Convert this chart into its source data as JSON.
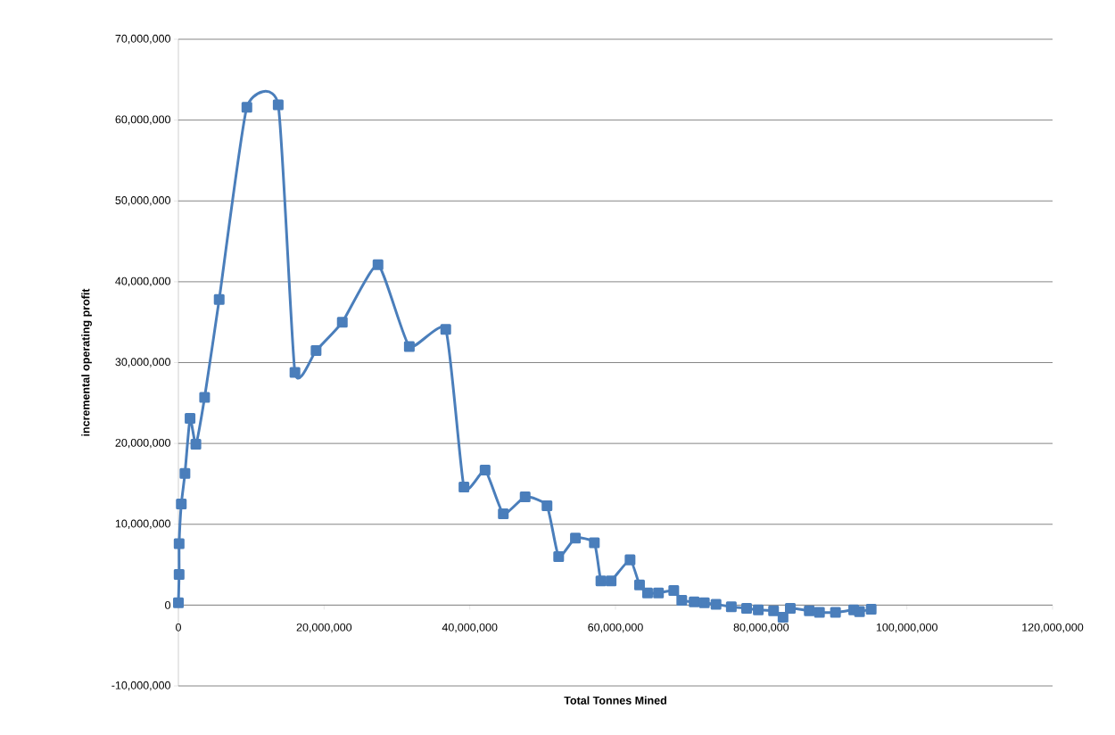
{
  "chart_data": {
    "type": "line",
    "xlabel": "Total Tonnes Mined",
    "ylabel": "incremental operating profit",
    "series": [
      {
        "color": "#4a7ebb",
        "x": [
          0,
          100000,
          100000,
          400000,
          900000,
          1600000,
          2400000,
          3600000,
          5600000,
          9400000,
          13700000,
          16000000,
          18900000,
          22500000,
          27400000,
          31700000,
          36700000,
          39200000,
          42100000,
          44600000,
          47600000,
          50600000,
          52200000,
          54500000,
          57100000,
          58000000,
          59400000,
          62000000,
          63300000,
          64400000,
          65900000,
          68000000,
          69100000,
          70800000,
          72200000,
          73800000,
          75900000,
          78000000,
          79600000,
          81700000,
          83000000,
          84000000,
          86600000,
          88000000,
          90200000,
          92700000,
          93500000,
          95100000
        ],
        "values": [
          300000,
          3800000,
          7600000,
          12500000,
          16300000,
          23100000,
          19900000,
          25700000,
          37800000,
          61600000,
          61900000,
          28800000,
          31500000,
          35000000,
          42100000,
          32000000,
          34100000,
          14600000,
          16700000,
          11300000,
          13400000,
          12300000,
          6000000,
          8300000,
          7700000,
          3000000,
          3000000,
          5600000,
          2500000,
          1500000,
          1500000,
          1800000,
          600000,
          400000,
          300000,
          100000,
          -200000,
          -400000,
          -600000,
          -700000,
          -1500000,
          -400000,
          -700000,
          -900000,
          -900000,
          -600000,
          -800000,
          -500000
        ]
      }
    ],
    "xlim": [
      0,
      120000000
    ],
    "ylim": [
      -10000000,
      70000000
    ],
    "xticks": [
      {
        "value": 0,
        "label": "0"
      },
      {
        "value": 20000000,
        "label": "20,000,000"
      },
      {
        "value": 40000000,
        "label": "40,000,000"
      },
      {
        "value": 60000000,
        "label": "60,000,000"
      },
      {
        "value": 80000000,
        "label": "80,000,000"
      },
      {
        "value": 100000000,
        "label": "100,000,000"
      },
      {
        "value": 120000000,
        "label": "120,000,000"
      }
    ],
    "yticks": [
      {
        "value": -10000000,
        "label": "-10,000,000"
      },
      {
        "value": 0,
        "label": "0"
      },
      {
        "value": 10000000,
        "label": "10,000,000"
      },
      {
        "value": 20000000,
        "label": "20,000,000"
      },
      {
        "value": 30000000,
        "label": "30,000,000"
      },
      {
        "value": 40000000,
        "label": "40,000,000"
      },
      {
        "value": 50000000,
        "label": "50,000,000"
      },
      {
        "value": 60000000,
        "label": "60,000,000"
      },
      {
        "value": 70000000,
        "label": "70,000,000"
      }
    ],
    "grid": "y",
    "marker": "square",
    "line_style": "solid"
  }
}
